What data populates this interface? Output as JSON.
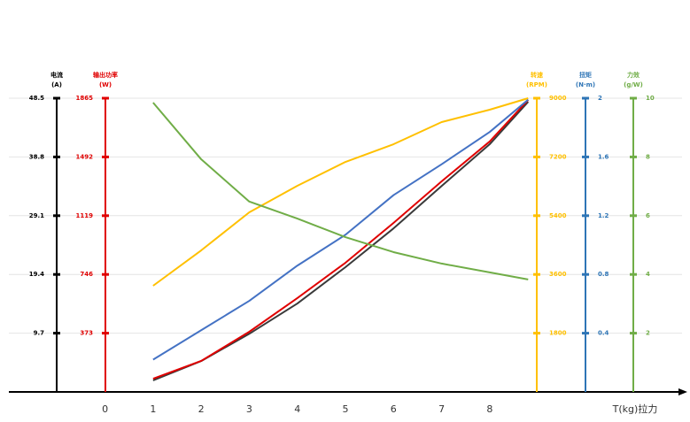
{
  "chart_data": {
    "type": "line",
    "grid": true,
    "x": [
      1,
      2,
      3,
      4,
      5,
      6,
      7,
      8,
      8.8
    ],
    "xlim": [
      -2,
      12
    ],
    "xticks": [
      0,
      1,
      2,
      3,
      4,
      5,
      6,
      7,
      8
    ],
    "xlabel": "T(kg)拉力",
    "axes": [
      {
        "name": "电流",
        "unit": "(A)",
        "color": "#000000",
        "line_color": "#3a3a3a",
        "ylim": [
          0,
          48.5
        ],
        "yticks": [
          9.7,
          19.4,
          29.1,
          38.8,
          48.5
        ],
        "values": [
          1.9,
          5.1,
          9.6,
          14.6,
          20.6,
          27.0,
          34.0,
          40.9,
          47.9
        ]
      },
      {
        "name": "输出功率",
        "unit": "(W)",
        "color": "#e00000",
        "line_color": "#e00000",
        "ylim": [
          0,
          1865
        ],
        "yticks": [
          373,
          746,
          1119,
          1492,
          1865
        ],
        "values": [
          84,
          197,
          382,
          596,
          820,
          1073,
          1337,
          1590,
          1854
        ]
      },
      {
        "name": "转速",
        "unit": "(RPM)",
        "color": "#ffc000",
        "line_color": "#ffc000",
        "ylim": [
          0,
          9000
        ],
        "yticks": [
          1800,
          3600,
          5400,
          7200,
          9000
        ],
        "values": [
          3253,
          4337,
          5503,
          6316,
          7048,
          7590,
          8268,
          8648,
          9000
        ]
      },
      {
        "name": "扭矩",
        "unit": "(N·m)",
        "color": "#2e75b6",
        "line_color": "#4472c4",
        "ylim": [
          0,
          2
        ],
        "yticks": [
          0.4,
          0.8,
          1.2,
          1.6,
          2
        ],
        "values": [
          0.22,
          0.42,
          0.62,
          0.86,
          1.07,
          1.34,
          1.55,
          1.77,
          1.99
        ]
      },
      {
        "name": "力效",
        "unit": "(g/W)",
        "color": "#70ad47",
        "line_color": "#70ad47",
        "ylim": [
          0,
          10
        ],
        "yticks": [
          2,
          4,
          6,
          8,
          10
        ],
        "values": [
          9.85,
          7.92,
          6.48,
          5.9,
          5.27,
          4.76,
          4.37,
          4.07,
          3.83
        ]
      }
    ]
  }
}
